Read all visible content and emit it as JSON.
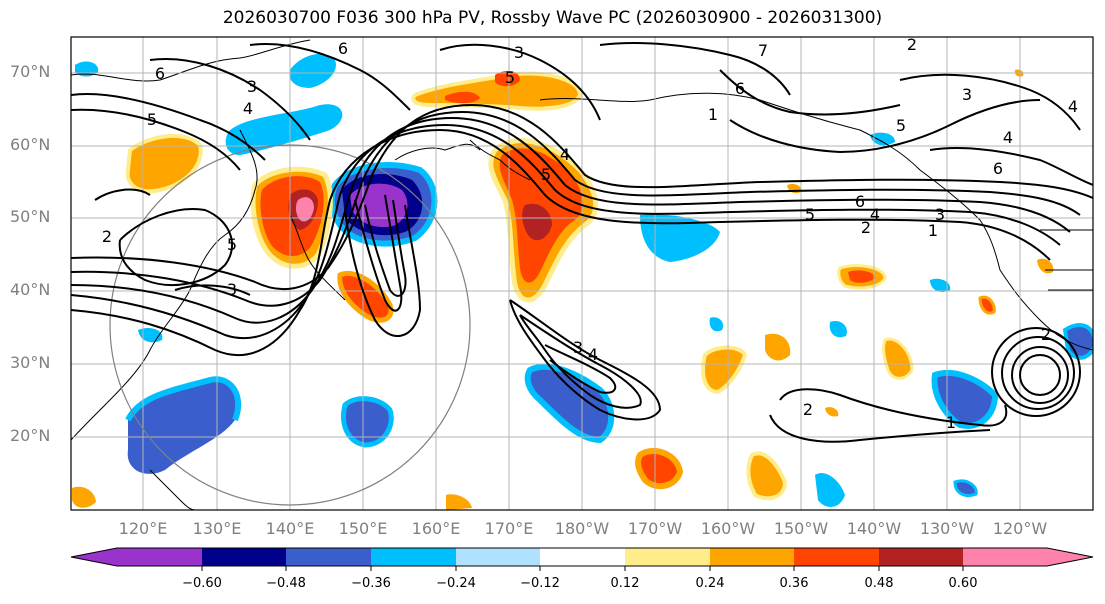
{
  "title": "2026030700 F036 300 hPa PV, Rossby Wave PC (2026030900 - 2026031300)",
  "latitude_labels": [
    "70°N",
    "60°N",
    "50°N",
    "40°N",
    "30°N",
    "20°N"
  ],
  "longitude_labels": [
    "120°E",
    "130°E",
    "140°E",
    "150°E",
    "160°E",
    "170°E",
    "180°W",
    "170°W",
    "160°W",
    "150°W",
    "140°W",
    "130°W",
    "120°W"
  ],
  "colorbar": {
    "tick_labels": [
      "−0.60",
      "−0.48",
      "−0.36",
      "−0.24",
      "−0.12",
      "0.12",
      "0.24",
      "0.36",
      "0.48",
      "0.60"
    ],
    "colors": [
      "#9933cc",
      "#00008b",
      "#3a5fcd",
      "#00bfff",
      "#b0e2ff",
      "#ffffff",
      "#ffec8b",
      "#ffa500",
      "#ff4500",
      "#b22222",
      "#ff82ab"
    ]
  },
  "pv_contour_labels": [
    "6",
    "6",
    "3",
    "7",
    "2",
    "6",
    "3",
    "5",
    "4",
    "3",
    "5",
    "4",
    "5",
    "5",
    "2",
    "3",
    "1",
    "6",
    "5",
    "4",
    "3",
    "2",
    "1",
    "3",
    "4",
    "2",
    "1",
    "2",
    "6",
    "4",
    "5",
    "3",
    "4"
  ]
}
